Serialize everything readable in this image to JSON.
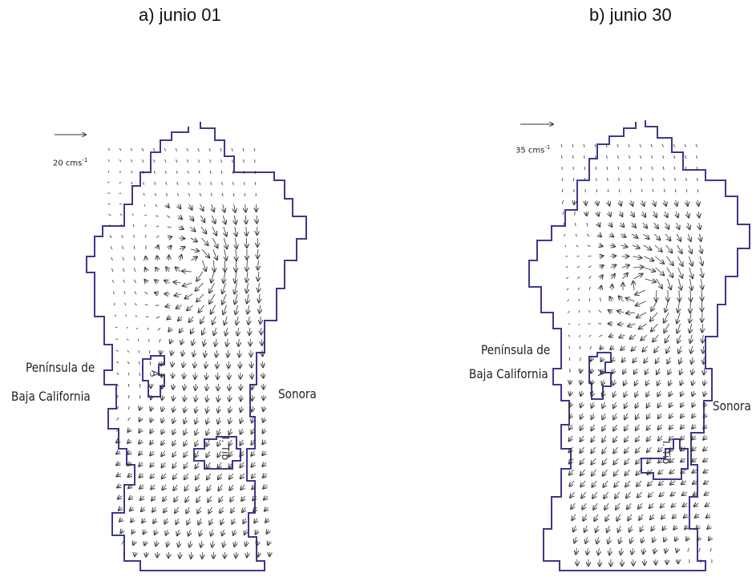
{
  "panels": [
    {
      "title": "a) junio 01",
      "scale_text": "20 cms",
      "scale_exp": "-1",
      "left_label_1": "Península de",
      "left_label_2": "Baja California",
      "right_label": "Sonora",
      "island_1": "A",
      "island_2": "I. Tib"
    },
    {
      "title": "b) junio 30",
      "scale_text": "35 cms",
      "scale_exp": "-1",
      "left_label_1": "Península de",
      "left_label_2": "Baja California",
      "right_label": "Sonora",
      "island_1": "A",
      "island_2": "I. Tib"
    }
  ],
  "colors": {
    "coast": "#3a3a8c",
    "arrows": "#333333"
  }
}
